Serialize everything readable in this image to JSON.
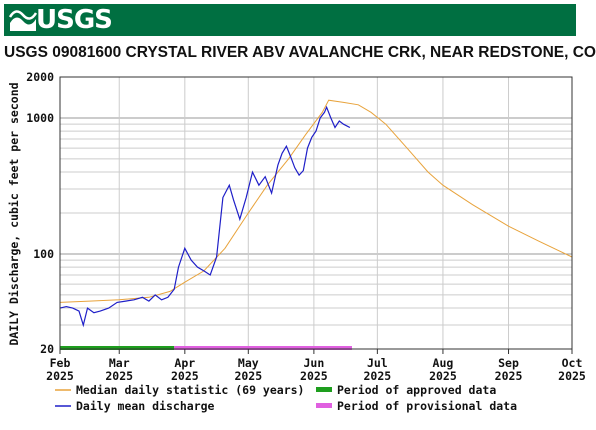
{
  "banner": {
    "logo_text": "USGS"
  },
  "chart_data": {
    "type": "line",
    "title": "USGS 09081600 CRYSTAL RIVER ABV AVALANCHE CRK, NEAR REDSTONE, CO",
    "ylabel": "DAILY Discharge, cubic feet per second",
    "xlabel": "",
    "yscale": "log",
    "ylim": [
      20,
      2000
    ],
    "xlim": [
      "2025-02-01",
      "2025-10-01"
    ],
    "grid": true,
    "y_major_ticks": [
      {
        "value": 20,
        "label": "20"
      },
      {
        "value": 100,
        "label": "100"
      },
      {
        "value": 1000,
        "label": "1000"
      },
      {
        "value": 2000,
        "label": "2000"
      }
    ],
    "x_ticks": [
      {
        "date": "2025-02-01",
        "label1": "Feb",
        "label2": "2025"
      },
      {
        "date": "2025-03-01",
        "label1": "Mar",
        "label2": "2025"
      },
      {
        "date": "2025-04-01",
        "label1": "Apr",
        "label2": "2025"
      },
      {
        "date": "2025-05-01",
        "label1": "May",
        "label2": "2025"
      },
      {
        "date": "2025-06-01",
        "label1": "Jun",
        "label2": "2025"
      },
      {
        "date": "2025-07-01",
        "label1": "Jul",
        "label2": "2025"
      },
      {
        "date": "2025-08-01",
        "label1": "Aug",
        "label2": "2025"
      },
      {
        "date": "2025-09-01",
        "label1": "Sep",
        "label2": "2025"
      },
      {
        "date": "2025-10-01",
        "label1": "Oct",
        "label2": "2025"
      }
    ],
    "series": [
      {
        "name": "Median daily statistic (69 years)",
        "color": "#e8a33c",
        "points": [
          [
            "2025-02-01",
            44
          ],
          [
            "2025-02-15",
            45
          ],
          [
            "2025-03-01",
            46
          ],
          [
            "2025-03-15",
            48
          ],
          [
            "2025-03-25",
            53
          ],
          [
            "2025-04-01",
            62
          ],
          [
            "2025-04-10",
            75
          ],
          [
            "2025-04-20",
            110
          ],
          [
            "2025-05-01",
            200
          ],
          [
            "2025-05-10",
            320
          ],
          [
            "2025-05-20",
            500
          ],
          [
            "2025-05-28",
            750
          ],
          [
            "2025-06-05",
            1100
          ],
          [
            "2025-06-08",
            1350
          ],
          [
            "2025-06-15",
            1300
          ],
          [
            "2025-06-22",
            1250
          ],
          [
            "2025-06-28",
            1100
          ],
          [
            "2025-07-05",
            900
          ],
          [
            "2025-07-15",
            600
          ],
          [
            "2025-07-25",
            400
          ],
          [
            "2025-08-01",
            320
          ],
          [
            "2025-08-15",
            230
          ],
          [
            "2025-09-01",
            160
          ],
          [
            "2025-09-15",
            125
          ],
          [
            "2025-10-01",
            95
          ],
          [
            "2025-10-01",
            95
          ]
        ]
      },
      {
        "name": "Daily mean discharge",
        "color": "#1f1fc8",
        "points": [
          [
            "2025-02-01",
            40
          ],
          [
            "2025-02-04",
            41
          ],
          [
            "2025-02-07",
            40
          ],
          [
            "2025-02-10",
            38
          ],
          [
            "2025-02-12",
            30
          ],
          [
            "2025-02-14",
            40
          ],
          [
            "2025-02-17",
            37
          ],
          [
            "2025-02-20",
            38
          ],
          [
            "2025-02-24",
            40
          ],
          [
            "2025-02-28",
            44
          ],
          [
            "2025-03-04",
            45
          ],
          [
            "2025-03-08",
            46
          ],
          [
            "2025-03-12",
            48
          ],
          [
            "2025-03-15",
            45
          ],
          [
            "2025-03-18",
            50
          ],
          [
            "2025-03-21",
            46
          ],
          [
            "2025-03-24",
            48
          ],
          [
            "2025-03-27",
            55
          ],
          [
            "2025-03-29",
            80
          ],
          [
            "2025-04-01",
            110
          ],
          [
            "2025-04-04",
            90
          ],
          [
            "2025-04-07",
            80
          ],
          [
            "2025-04-10",
            75
          ],
          [
            "2025-04-13",
            70
          ],
          [
            "2025-04-16",
            95
          ],
          [
            "2025-04-19",
            260
          ],
          [
            "2025-04-22",
            320
          ],
          [
            "2025-04-24",
            250
          ],
          [
            "2025-04-27",
            180
          ],
          [
            "2025-04-30",
            260
          ],
          [
            "2025-05-03",
            400
          ],
          [
            "2025-05-06",
            320
          ],
          [
            "2025-05-09",
            370
          ],
          [
            "2025-05-12",
            280
          ],
          [
            "2025-05-15",
            450
          ],
          [
            "2025-05-17",
            550
          ],
          [
            "2025-05-19",
            620
          ],
          [
            "2025-05-21",
            520
          ],
          [
            "2025-05-23",
            430
          ],
          [
            "2025-05-25",
            380
          ],
          [
            "2025-05-27",
            410
          ],
          [
            "2025-05-29",
            600
          ],
          [
            "2025-05-31",
            720
          ],
          [
            "2025-06-02",
            800
          ],
          [
            "2025-06-04",
            1000
          ],
          [
            "2025-06-06",
            1100
          ],
          [
            "2025-06-07",
            1200
          ],
          [
            "2025-06-09",
            1000
          ],
          [
            "2025-06-11",
            850
          ],
          [
            "2025-06-13",
            950
          ],
          [
            "2025-06-15",
            900
          ],
          [
            "2025-06-18",
            850
          ]
        ]
      },
      {
        "name": "Period of approved data",
        "color": "#1e9e1e",
        "start": "2025-02-01",
        "end": "2025-03-27"
      },
      {
        "name": "Period of provisional data",
        "color": "#e060e0",
        "start": "2025-03-27",
        "end": "2025-06-19"
      }
    ]
  }
}
